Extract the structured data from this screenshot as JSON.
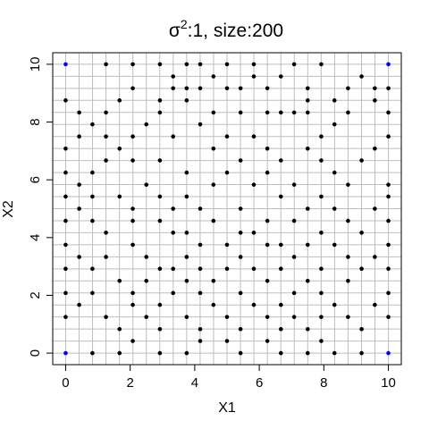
{
  "chart_data": {
    "type": "scatter",
    "title_main": "σ",
    "title_sup": "2",
    "title_rest": ":1, size:200",
    "xlabel": "X1",
    "ylabel": "X2",
    "xlim": [
      -0.4,
      10.4
    ],
    "ylim": [
      -0.4,
      10.4
    ],
    "xticks": [
      0,
      2,
      4,
      6,
      8,
      10
    ],
    "yticks": [
      0,
      2,
      4,
      6,
      8,
      10
    ],
    "xtick_labels": [
      "0",
      "2",
      "4",
      "6",
      "8",
      "10"
    ],
    "ytick_labels": [
      "0",
      "2",
      "4",
      "6",
      "8",
      "10"
    ],
    "grid": true,
    "grid_step": 0.4167,
    "colors": {
      "point": "#000000",
      "corner_point": "#0000ff",
      "grid": "#bebebe",
      "frame": "#000000"
    },
    "corner_points": [
      [
        0,
        0
      ],
      [
        10,
        0
      ],
      [
        0,
        10
      ],
      [
        10,
        10
      ]
    ],
    "points": [
      [
        1.25,
        10
      ],
      [
        2.08,
        10
      ],
      [
        2.92,
        10
      ],
      [
        3.75,
        10
      ],
      [
        4.17,
        10
      ],
      [
        5,
        10
      ],
      [
        5.83,
        10
      ],
      [
        7.08,
        10
      ],
      [
        7.92,
        10
      ],
      [
        2.08,
        9.17
      ],
      [
        3.33,
        9.17
      ],
      [
        3.75,
        9.17
      ],
      [
        4.17,
        9.17
      ],
      [
        5,
        9.17
      ],
      [
        5.42,
        9.17
      ],
      [
        6.25,
        9.17
      ],
      [
        7.5,
        9.17
      ],
      [
        8.75,
        9.17
      ],
      [
        9.58,
        9.17
      ],
      [
        10,
        9.17
      ],
      [
        3.33,
        9.58
      ],
      [
        4.58,
        9.58
      ],
      [
        5.83,
        9.58
      ],
      [
        6.67,
        9.58
      ],
      [
        9.17,
        9.58
      ],
      [
        0,
        8.75
      ],
      [
        1.67,
        8.75
      ],
      [
        2.92,
        8.75
      ],
      [
        3.75,
        8.75
      ],
      [
        7.5,
        8.75
      ],
      [
        8.33,
        8.75
      ],
      [
        9.58,
        8.75
      ],
      [
        0.42,
        8.33
      ],
      [
        1.25,
        8.33
      ],
      [
        2.92,
        8.33
      ],
      [
        4.58,
        8.33
      ],
      [
        5.42,
        8.33
      ],
      [
        6.25,
        8.33
      ],
      [
        6.67,
        8.33
      ],
      [
        7.08,
        8.33
      ],
      [
        7.5,
        8.33
      ],
      [
        8.75,
        8.33
      ],
      [
        10,
        8.33
      ],
      [
        0.83,
        7.92
      ],
      [
        2.5,
        7.92
      ],
      [
        4.17,
        7.92
      ],
      [
        8.33,
        7.92
      ],
      [
        0,
        7.08
      ],
      [
        0.42,
        7.5
      ],
      [
        1.25,
        7.5
      ],
      [
        2.08,
        7.5
      ],
      [
        3.33,
        7.5
      ],
      [
        5,
        7.5
      ],
      [
        5.83,
        7.5
      ],
      [
        7.92,
        7.5
      ],
      [
        10,
        7.5
      ],
      [
        1.67,
        7.08
      ],
      [
        4.58,
        7.08
      ],
      [
        6.25,
        7.08
      ],
      [
        7.5,
        7.08
      ],
      [
        9.58,
        7.08
      ],
      [
        1.25,
        6.67
      ],
      [
        2.08,
        6.67
      ],
      [
        2.92,
        6.67
      ],
      [
        5.42,
        6.67
      ],
      [
        6.67,
        6.67
      ],
      [
        7.92,
        6.67
      ],
      [
        9.17,
        6.67
      ],
      [
        0,
        6.25
      ],
      [
        0.83,
        6.25
      ],
      [
        3.75,
        6.25
      ],
      [
        5,
        6.25
      ],
      [
        6.25,
        6.25
      ],
      [
        8.33,
        6.25
      ],
      [
        0.42,
        5.83
      ],
      [
        2.5,
        5.83
      ],
      [
        4.58,
        5.83
      ],
      [
        5.83,
        5.83
      ],
      [
        7.08,
        5.83
      ],
      [
        8.75,
        5.83
      ],
      [
        10,
        5.83
      ],
      [
        0,
        5.42
      ],
      [
        0.83,
        5.42
      ],
      [
        1.67,
        5.42
      ],
      [
        2.92,
        5.42
      ],
      [
        3.75,
        5.42
      ],
      [
        6.67,
        5.42
      ],
      [
        7.92,
        5.42
      ],
      [
        10,
        5.42
      ],
      [
        0.42,
        5
      ],
      [
        2.08,
        5
      ],
      [
        3.33,
        5
      ],
      [
        4.17,
        5
      ],
      [
        5.42,
        5
      ],
      [
        7.5,
        5
      ],
      [
        8.33,
        5
      ],
      [
        9.58,
        5
      ],
      [
        0,
        4.58
      ],
      [
        0.83,
        4.58
      ],
      [
        2.08,
        4.58
      ],
      [
        2.92,
        4.58
      ],
      [
        4.58,
        4.58
      ],
      [
        6.25,
        4.58
      ],
      [
        7.08,
        4.58
      ],
      [
        8.75,
        4.58
      ],
      [
        10,
        4.58
      ],
      [
        1.25,
        4.17
      ],
      [
        3.33,
        4.17
      ],
      [
        3.75,
        4.17
      ],
      [
        5.42,
        4.17
      ],
      [
        5.83,
        4.17
      ],
      [
        7.92,
        4.17
      ],
      [
        9.17,
        4.17
      ],
      [
        0,
        3.75
      ],
      [
        2.08,
        3.75
      ],
      [
        4.17,
        3.75
      ],
      [
        5,
        3.75
      ],
      [
        6.25,
        3.75
      ],
      [
        6.67,
        3.75
      ],
      [
        7.5,
        3.75
      ],
      [
        8.33,
        3.75
      ],
      [
        10,
        3.75
      ],
      [
        0.42,
        3.33
      ],
      [
        1.25,
        3.33
      ],
      [
        2.5,
        3.33
      ],
      [
        3.75,
        3.33
      ],
      [
        5.42,
        3.33
      ],
      [
        7.08,
        3.33
      ],
      [
        8.75,
        3.33
      ],
      [
        9.58,
        3.33
      ],
      [
        0,
        2.92
      ],
      [
        0.83,
        2.92
      ],
      [
        2.92,
        2.92
      ],
      [
        3.33,
        2.92
      ],
      [
        4.17,
        2.92
      ],
      [
        5,
        2.92
      ],
      [
        5.83,
        2.92
      ],
      [
        6.67,
        2.92
      ],
      [
        7.92,
        2.92
      ],
      [
        9.17,
        2.92
      ],
      [
        10,
        2.92
      ],
      [
        1.67,
        2.5
      ],
      [
        2.5,
        2.5
      ],
      [
        3.75,
        2.5
      ],
      [
        4.58,
        2.5
      ],
      [
        6.25,
        2.5
      ],
      [
        7.5,
        2.5
      ],
      [
        8.75,
        2.5
      ],
      [
        0,
        2.08
      ],
      [
        0.83,
        2.08
      ],
      [
        2.08,
        2.08
      ],
      [
        3.33,
        2.08
      ],
      [
        4.17,
        2.08
      ],
      [
        5.42,
        2.08
      ],
      [
        7.08,
        2.08
      ],
      [
        7.92,
        2.08
      ],
      [
        10,
        2.08
      ],
      [
        0.42,
        1.67
      ],
      [
        2.08,
        1.67
      ],
      [
        2.92,
        1.67
      ],
      [
        4.58,
        1.67
      ],
      [
        5.83,
        1.67
      ],
      [
        6.67,
        1.67
      ],
      [
        8.33,
        1.67
      ],
      [
        9.58,
        1.67
      ],
      [
        0,
        1.25
      ],
      [
        1.25,
        1.25
      ],
      [
        2.5,
        1.25
      ],
      [
        3.75,
        1.25
      ],
      [
        5,
        1.25
      ],
      [
        6.25,
        1.25
      ],
      [
        7.08,
        1.25
      ],
      [
        7.92,
        1.25
      ],
      [
        8.75,
        1.25
      ],
      [
        10,
        1.25
      ],
      [
        1.67,
        0.83
      ],
      [
        2.92,
        0.83
      ],
      [
        4.17,
        0.83
      ],
      [
        5.42,
        0.83
      ],
      [
        6.67,
        0.83
      ],
      [
        7.5,
        0.83
      ],
      [
        9.17,
        0.83
      ],
      [
        2.08,
        0.42
      ],
      [
        4.17,
        0.42
      ],
      [
        5,
        0.42
      ],
      [
        6.25,
        0.42
      ],
      [
        7.92,
        0.42
      ],
      [
        0.83,
        0
      ],
      [
        1.67,
        0
      ],
      [
        2.92,
        0
      ],
      [
        3.75,
        0
      ],
      [
        5.42,
        0
      ],
      [
        6.67,
        0
      ],
      [
        7.5,
        0
      ],
      [
        8.33,
        0
      ],
      [
        9.17,
        0
      ]
    ]
  }
}
